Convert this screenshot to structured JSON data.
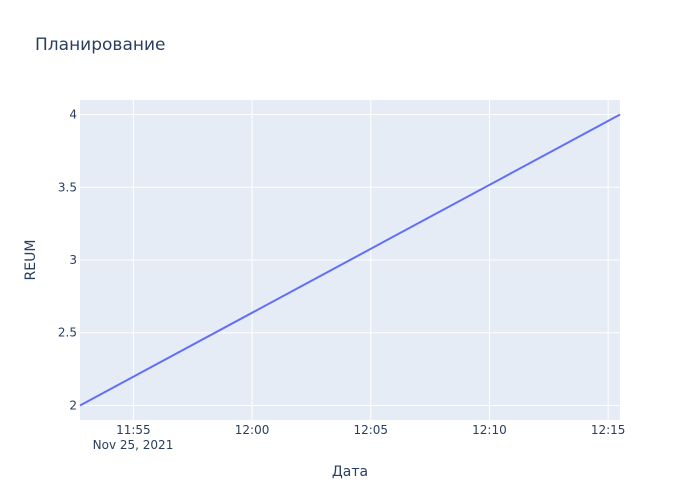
{
  "chart_data": {
    "type": "line",
    "title": "Планирование",
    "xlabel": "Дата",
    "ylabel": "REUM",
    "x_tick_labels": [
      "11:55",
      "12:00",
      "12:05",
      "12:10",
      "12:15"
    ],
    "x_tick_values": [
      "2021-11-25 11:55",
      "2021-11-25 12:00",
      "2021-11-25 12:05",
      "2021-11-25 12:10",
      "2021-11-25 12:15"
    ],
    "x_date_label": "Nov 25, 2021",
    "y_tick_labels": [
      "2",
      "2.5",
      "3",
      "3.5",
      "4"
    ],
    "y_tick_values": [
      2,
      2.5,
      3,
      3.5,
      4
    ],
    "xlim": [
      "2021-11-25 11:52:45",
      "2021-11-25 12:15:30"
    ],
    "ylim": [
      1.9,
      4.1
    ],
    "grid": true,
    "series": [
      {
        "x": [
          "2021-11-25 11:52:45",
          "2021-11-25 12:15:30"
        ],
        "y": [
          2,
          4
        ],
        "color": "#636efa"
      }
    ],
    "colors": {
      "plot_bg": "#e5ecf6",
      "grid": "#ffffff",
      "text": "#2a3f5f",
      "line": "#636efa"
    }
  }
}
